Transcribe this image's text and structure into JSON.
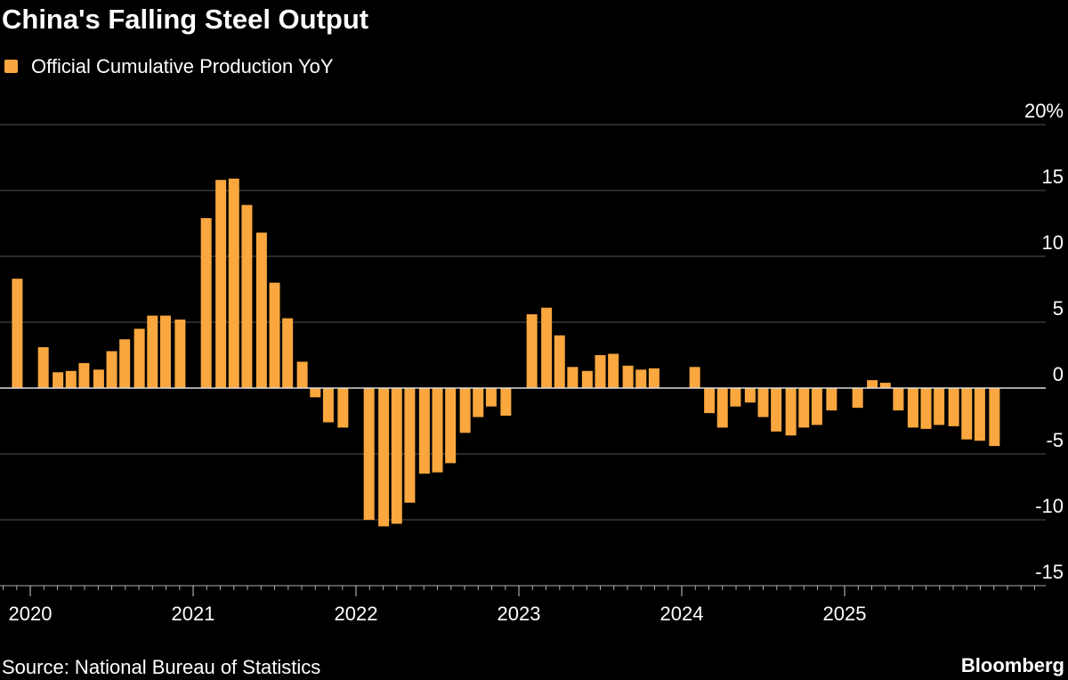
{
  "chart_data": {
    "type": "bar",
    "title": "China's Falling Steel Output",
    "source": "Source: National Bureau of Statistics",
    "brand": "Bloomberg",
    "legend_position": "top-left",
    "series": [
      {
        "name": "Official Cumulative Production YoY",
        "color": "#f9a73e",
        "x": [
          2019.92,
          2020.08,
          2020.17,
          2020.25,
          2020.33,
          2020.42,
          2020.5,
          2020.58,
          2020.67,
          2020.75,
          2020.83,
          2020.92,
          2021.08,
          2021.17,
          2021.25,
          2021.33,
          2021.42,
          2021.5,
          2021.58,
          2021.67,
          2021.75,
          2021.83,
          2021.92,
          2022.08,
          2022.17,
          2022.25,
          2022.33,
          2022.42,
          2022.5,
          2022.58,
          2022.67,
          2022.75,
          2022.83,
          2022.92,
          2023.08,
          2023.17,
          2023.25,
          2023.33,
          2023.42,
          2023.5,
          2023.58,
          2023.67,
          2023.75,
          2023.83,
          2024.08,
          2024.17,
          2024.25,
          2024.33,
          2024.42,
          2024.5,
          2024.58,
          2024.67,
          2024.75,
          2024.83,
          2024.92,
          2025.08,
          2025.17,
          2025.25,
          2025.33,
          2025.42,
          2025.5,
          2025.58,
          2025.67,
          2025.75,
          2025.83,
          2025.92
        ],
        "values": [
          8.3,
          3.1,
          1.2,
          1.3,
          1.9,
          1.4,
          2.8,
          3.7,
          4.5,
          5.5,
          5.5,
          5.2,
          12.9,
          15.8,
          15.9,
          13.9,
          11.8,
          8.0,
          5.3,
          2.0,
          -0.7,
          -2.6,
          -3.0,
          -10.0,
          -10.5,
          -10.3,
          -8.7,
          -6.5,
          -6.4,
          -5.7,
          -3.4,
          -2.2,
          -1.4,
          -2.1,
          5.6,
          6.1,
          4.0,
          1.6,
          1.3,
          2.5,
          2.6,
          1.7,
          1.4,
          1.5,
          1.6,
          -1.9,
          -3.0,
          -1.4,
          -1.1,
          -2.2,
          -3.3,
          -3.6,
          -3.0,
          -2.8,
          -1.7,
          -1.5,
          0.6,
          0.4,
          -1.7,
          -3.0,
          -3.1,
          -2.8,
          -2.9,
          -3.9,
          -4.0,
          -4.4
        ]
      }
    ],
    "xlim": [
      2019.814,
      2026.235
    ],
    "xticks": [
      2020,
      2021,
      2022,
      2023,
      2024,
      2025
    ],
    "ylim": [
      -15,
      20
    ],
    "yticks": [
      -15,
      -10,
      -5,
      0,
      5,
      10,
      15,
      {
        "value": 20,
        "label": "20%"
      }
    ],
    "grid": true
  }
}
